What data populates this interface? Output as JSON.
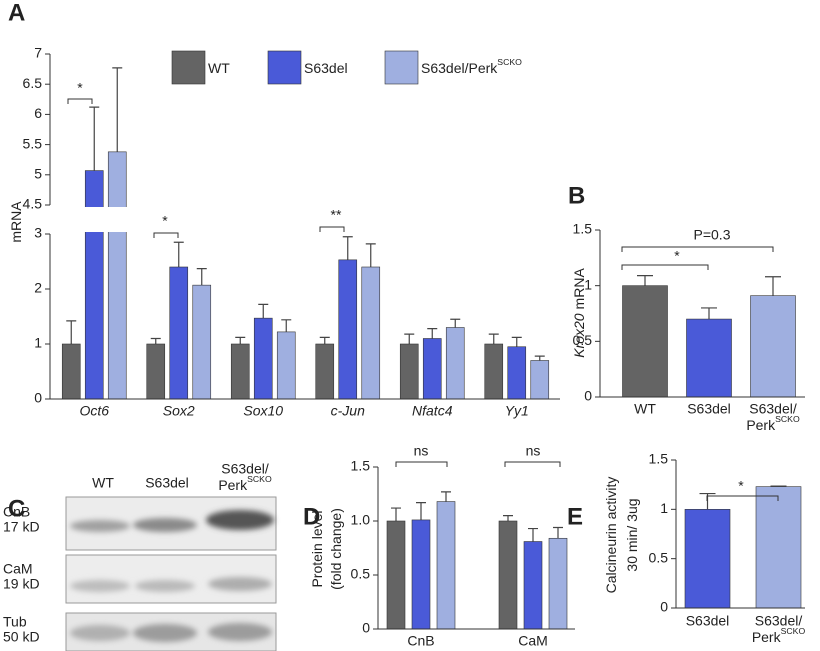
{
  "chart_data": [
    {
      "type": "bar",
      "panel": "A",
      "ylabel": [
        "mRNA"
      ],
      "categories": [
        "Oct6",
        "Sox2",
        "Sox10",
        "c-Jun",
        "Nfatc4",
        "Yy1"
      ],
      "series": [
        {
          "name": "WT",
          "color": "#646464",
          "values": [
            1.0,
            1.0,
            1.0,
            1.0,
            1.0,
            1.0
          ],
          "errors": [
            0.42,
            0.1,
            0.12,
            0.12,
            0.18,
            0.18
          ]
        },
        {
          "name": "S63del",
          "color": "#4a5ad8",
          "values": [
            5.07,
            2.4,
            1.47,
            2.53,
            1.1,
            0.95
          ],
          "errors": [
            1.05,
            0.45,
            0.25,
            0.42,
            0.18,
            0.17
          ]
        },
        {
          "name": "S63del/Perk",
          "name_sup": "SCKO",
          "color": "#9fafe0",
          "values": [
            5.38,
            2.07,
            1.22,
            2.4,
            1.3,
            0.7
          ],
          "errors": [
            1.39,
            0.3,
            0.22,
            0.42,
            0.15,
            0.08
          ]
        }
      ],
      "ylim": [
        0,
        7
      ],
      "ybreak": [
        3,
        4.5
      ],
      "yticks": [
        0,
        1,
        2,
        3,
        4.5,
        5,
        5.5,
        6,
        6.5,
        7
      ],
      "legend": "top",
      "annotations": [
        "*",
        "*",
        "**"
      ]
    },
    {
      "type": "bar",
      "panel": "B",
      "ylabel_italic": "Krox20",
      "ylabel": [
        "mRNA"
      ],
      "categories": [
        "WT",
        "S63del",
        "S63del/"
      ],
      "category_line2": [
        null,
        null,
        "Perk"
      ],
      "category_sup": [
        null,
        null,
        "SCKO"
      ],
      "values": [
        1.0,
        0.7,
        0.91
      ],
      "errors": [
        0.09,
        0.1,
        0.17
      ],
      "colors": [
        "#646464",
        "#4a5ad8",
        "#9fafe0"
      ],
      "ylim": [
        0,
        1.5
      ],
      "yticks": [
        0,
        0.5,
        1,
        1.5
      ],
      "annotations": [
        "*",
        "P=0.3"
      ]
    },
    {
      "type": "bar",
      "panel": "D",
      "ylabel": [
        "Protein level",
        "(fold change)"
      ],
      "categories": [
        "CnB",
        "CaM"
      ],
      "series": [
        {
          "color": "#646464",
          "values": [
            1.0,
            1.0
          ],
          "errors": [
            0.12,
            0.05
          ]
        },
        {
          "color": "#4a5ad8",
          "values": [
            1.01,
            0.81
          ],
          "errors": [
            0.16,
            0.12
          ]
        },
        {
          "color": "#9fafe0",
          "values": [
            1.18,
            0.84
          ],
          "errors": [
            0.09,
            0.1
          ]
        }
      ],
      "error_both_sides": true,
      "ylim": [
        0,
        1.5
      ],
      "yticks": [
        0,
        0.5,
        {
          "value": 1,
          "label": "1.0"
        },
        1.5
      ],
      "annotations": [
        "ns",
        "ns"
      ]
    },
    {
      "type": "bar",
      "panel": "E",
      "ylabel": [
        "Calcineurin  activity",
        "30 min/ 3ug"
      ],
      "categories": [
        "S63del",
        "S63del/"
      ],
      "category_line2": [
        null,
        "Perk"
      ],
      "category_sup": [
        null,
        "SCKO"
      ],
      "values": [
        1.0,
        1.23
      ],
      "errors": [
        0.16,
        0.005
      ],
      "colors": [
        "#4a5ad8",
        "#9fafe0"
      ],
      "ylim": [
        0,
        1.5
      ],
      "yticks": [
        0,
        0.5,
        1,
        1.5
      ],
      "annotations": [
        "*"
      ]
    }
  ],
  "blot": {
    "panel": "C",
    "lanes": [
      "WT",
      "S63del",
      "S63del/"
    ],
    "lane_line2": [
      null,
      null,
      "Perk"
    ],
    "lane_sup": [
      null,
      null,
      "SCKO"
    ],
    "rows": [
      {
        "protein": "CnB",
        "size": "17 kD"
      },
      {
        "protein": "CaM",
        "size": "19 kD"
      },
      {
        "protein": "Tub",
        "size": "50 kD"
      }
    ]
  }
}
